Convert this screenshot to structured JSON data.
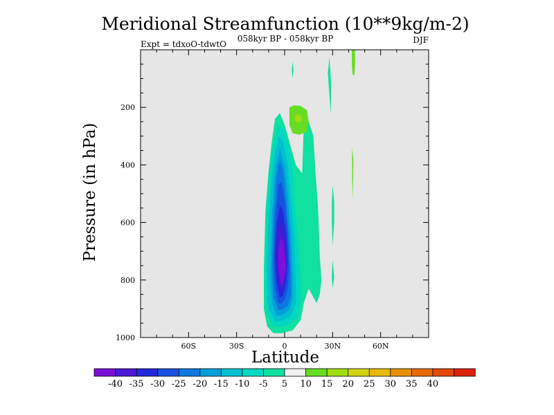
{
  "chart_data": {
    "type": "contour",
    "title": "Meridional Streamfunction (10**9kg/m-2)",
    "subtitle_left": "Expt = tdxoO-tdwtO",
    "subtitle_center": "058kyr BP - 058kyr BP",
    "subtitle_right": "DJF",
    "xlabel": "Latitude",
    "ylabel": "Pressure (in hPa)",
    "xlim": [
      -90,
      90
    ],
    "ylim": [
      0,
      1000
    ],
    "y_inverted": true,
    "xticks": [
      {
        "value": -60,
        "label": "60S"
      },
      {
        "value": -30,
        "label": "30S"
      },
      {
        "value": 0,
        "label": "0"
      },
      {
        "value": 30,
        "label": "30N"
      },
      {
        "value": 60,
        "label": "60N"
      }
    ],
    "yticks": [
      {
        "value": 200,
        "label": "200"
      },
      {
        "value": 400,
        "label": "400"
      },
      {
        "value": 600,
        "label": "600"
      },
      {
        "value": 800,
        "label": "800"
      },
      {
        "value": 1000,
        "label": "1000"
      }
    ],
    "background": "#e6e6e6",
    "colorbar": {
      "levels": [
        -40,
        -35,
        -30,
        -25,
        -20,
        -15,
        -10,
        -5,
        5,
        10,
        15,
        20,
        25,
        30,
        35,
        40
      ],
      "level_labels": [
        "-40",
        "-35",
        "-30",
        "-25",
        "-20",
        "-15",
        "-10",
        "-5",
        "5",
        "10",
        "15",
        "20",
        "25",
        "30",
        "35",
        "40"
      ],
      "colors": [
        "#7a10d8",
        "#4a18d6",
        "#2428d8",
        "#1850e0",
        "#0c78e0",
        "#00a0d8",
        "#00c0d0",
        "#00d8c0",
        "#10e0a0",
        "#f2f2f2",
        "#66dd22",
        "#a0dd10",
        "#d2d212",
        "#e6b808",
        "#e69008",
        "#e66808",
        "#e24808",
        "#d82208"
      ]
    },
    "contours": [
      {
        "level": -10,
        "color": "#10e0a0",
        "lat_p": [
          [
            -7,
            985
          ],
          [
            -11,
            960
          ],
          [
            -13,
            900
          ],
          [
            -13,
            760
          ],
          [
            -12,
            560
          ],
          [
            -10,
            420
          ],
          [
            -8,
            320
          ],
          [
            -6,
            240
          ],
          [
            -3,
            220
          ],
          [
            0,
            260
          ],
          [
            3,
            320
          ],
          [
            7,
            400
          ],
          [
            11,
            430
          ],
          [
            12,
            260
          ],
          [
            14,
            230
          ],
          [
            18,
            300
          ],
          [
            19,
            400
          ],
          [
            21,
            560
          ],
          [
            22,
            720
          ],
          [
            23,
            800
          ],
          [
            22,
            850
          ],
          [
            20,
            880
          ],
          [
            18,
            860
          ],
          [
            15,
            830
          ],
          [
            12,
            880
          ],
          [
            10,
            940
          ],
          [
            5,
            975
          ],
          [
            -2,
            985
          ]
        ]
      },
      {
        "level": -10,
        "color": "#10e0a0",
        "lat_p": [
          [
            30,
            470
          ],
          [
            31,
            530
          ],
          [
            31,
            600
          ],
          [
            30,
            680
          ],
          [
            29.5,
            600
          ],
          [
            29.5,
            530
          ]
        ]
      },
      {
        "level": -10,
        "color": "#10e0a0",
        "lat_p": [
          [
            30,
            730
          ],
          [
            31,
            790
          ],
          [
            30,
            830
          ],
          [
            29.5,
            790
          ]
        ]
      },
      {
        "level": -10,
        "color": "#10e0a0",
        "lat_p": [
          [
            28,
            25
          ],
          [
            29,
            110
          ],
          [
            29,
            225
          ],
          [
            28,
            160
          ],
          [
            27,
            80
          ]
        ]
      },
      {
        "level": -10,
        "color": "#10e0a0",
        "lat_p": [
          [
            5,
            40
          ],
          [
            5.5,
            70
          ],
          [
            5,
            100
          ],
          [
            4.5,
            70
          ]
        ]
      },
      {
        "level": -15,
        "color": "#00d8c0",
        "lat_p": [
          [
            -7,
            960
          ],
          [
            -11,
            920
          ],
          [
            -12,
            820
          ],
          [
            -11,
            560
          ],
          [
            -8,
            360
          ],
          [
            -4,
            260
          ],
          [
            0,
            280
          ],
          [
            3,
            340
          ],
          [
            5,
            400
          ],
          [
            6,
            520
          ],
          [
            8,
            640
          ],
          [
            9,
            720
          ],
          [
            10,
            800
          ],
          [
            10,
            870
          ],
          [
            8,
            930
          ],
          [
            3,
            955
          ],
          [
            -3,
            962
          ]
        ]
      },
      {
        "level": -20,
        "color": "#00c0d0",
        "lat_p": [
          [
            -6,
            945
          ],
          [
            -10,
            900
          ],
          [
            -11,
            800
          ],
          [
            -10,
            580
          ],
          [
            -7,
            400
          ],
          [
            -4,
            300
          ],
          [
            -1,
            320
          ],
          [
            2,
            400
          ],
          [
            4,
            520
          ],
          [
            6,
            660
          ],
          [
            7,
            800
          ],
          [
            7,
            880
          ],
          [
            4,
            925
          ],
          [
            -2,
            942
          ]
        ]
      },
      {
        "level": -25,
        "color": "#00a0d8",
        "lat_p": [
          [
            -5,
            925
          ],
          [
            -8,
            880
          ],
          [
            -9,
            780
          ],
          [
            -8,
            580
          ],
          [
            -6,
            420
          ],
          [
            -3,
            340
          ],
          [
            0,
            400
          ],
          [
            2,
            500
          ],
          [
            4,
            640
          ],
          [
            5,
            780
          ],
          [
            5,
            860
          ],
          [
            3,
            905
          ],
          [
            -1,
            920
          ]
        ]
      },
      {
        "level": -30,
        "color": "#0c78e0",
        "lat_p": [
          [
            -4,
            905
          ],
          [
            -7,
            860
          ],
          [
            -8,
            760
          ],
          [
            -7,
            590
          ],
          [
            -5,
            440
          ],
          [
            -3,
            380
          ],
          [
            -1,
            420
          ],
          [
            1,
            520
          ],
          [
            3,
            660
          ],
          [
            4,
            780
          ],
          [
            4,
            850
          ],
          [
            2,
            890
          ],
          [
            -1,
            902
          ]
        ]
      },
      {
        "level": -35,
        "color": "#1850e0",
        "lat_p": [
          [
            -4,
            880
          ],
          [
            -6,
            830
          ],
          [
            -7,
            740
          ],
          [
            -6,
            600
          ],
          [
            -4,
            470
          ],
          [
            -2,
            460
          ],
          [
            0,
            520
          ],
          [
            2,
            640
          ],
          [
            3,
            760
          ],
          [
            2,
            830
          ],
          [
            0,
            870
          ],
          [
            -2,
            882
          ]
        ]
      },
      {
        "level": -40,
        "color": "#2428d8",
        "lat_p": [
          [
            -3,
            860
          ],
          [
            -5,
            810
          ],
          [
            -6,
            720
          ],
          [
            -5,
            610
          ],
          [
            -3,
            540
          ],
          [
            -1,
            560
          ],
          [
            1,
            640
          ],
          [
            2,
            740
          ],
          [
            1,
            810
          ],
          [
            -1,
            855
          ]
        ]
      },
      {
        "level": -45,
        "color": "#4a18d6",
        "lat_p": [
          [
            -3,
            835
          ],
          [
            -4,
            780
          ],
          [
            -5,
            700
          ],
          [
            -4,
            630
          ],
          [
            -2,
            600
          ],
          [
            0,
            650
          ],
          [
            1,
            730
          ],
          [
            0,
            800
          ],
          [
            -2,
            830
          ]
        ]
      },
      {
        "level": -50,
        "color": "#7a10d8",
        "lat_p": [
          [
            -2,
            820
          ],
          [
            -4,
            760
          ],
          [
            -4,
            700
          ],
          [
            -3,
            660
          ],
          [
            -1,
            660
          ],
          [
            0,
            710
          ],
          [
            1,
            760
          ],
          [
            -1,
            810
          ]
        ]
      },
      {
        "level": 10,
        "color": "#66dd22",
        "lat_p": [
          [
            3,
            200
          ],
          [
            3,
            260
          ],
          [
            5,
            290
          ],
          [
            9,
            295
          ],
          [
            14,
            285
          ],
          [
            15,
            250
          ],
          [
            14,
            210
          ],
          [
            10,
            195
          ],
          [
            6,
            193
          ]
        ]
      },
      {
        "level": 15,
        "color": "#a0dd10",
        "lat_p": [
          [
            6,
            235
          ],
          [
            7,
            250
          ],
          [
            9,
            252
          ],
          [
            11,
            245
          ],
          [
            10,
            228
          ],
          [
            8,
            222
          ]
        ]
      },
      {
        "level": 10,
        "color": "#66dd22",
        "lat_p": [
          [
            42,
            0
          ],
          [
            44,
            0
          ],
          [
            44,
            60
          ],
          [
            43.5,
            90
          ],
          [
            42.5,
            85
          ],
          [
            42,
            50
          ]
        ]
      },
      {
        "level": 10,
        "color": "#66dd22",
        "lat_p": [
          [
            42,
            340
          ],
          [
            43,
            380
          ],
          [
            42.8,
            450
          ],
          [
            42.6,
            520
          ],
          [
            42.2,
            450
          ],
          [
            42.2,
            380
          ]
        ]
      }
    ]
  }
}
